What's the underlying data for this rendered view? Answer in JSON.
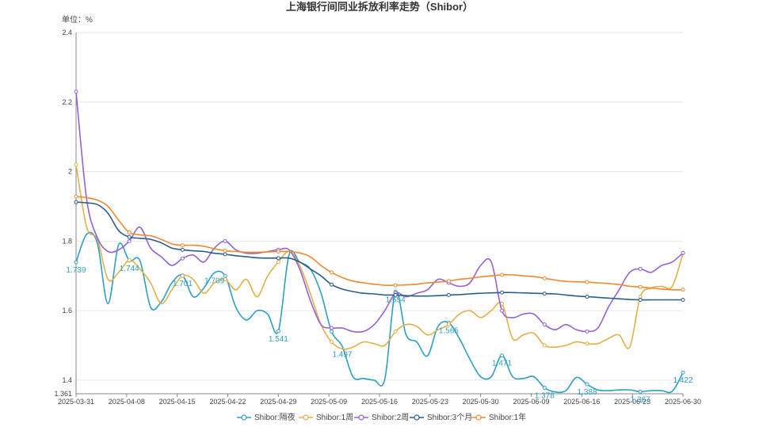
{
  "chart_data": {
    "type": "line",
    "title": "上海银行间同业拆放利率走势（Shibor）",
    "unit_label": "单位：%",
    "ylim": [
      1.361,
      2.4
    ],
    "yticks": [
      "1.361",
      "1.4",
      "1.6",
      "1.8",
      "2",
      "2.2",
      "2.4"
    ],
    "x_tick_labels": [
      "2025-03-31",
      "2025-04-08",
      "2025-04-15",
      "2025-04-22",
      "2025-04-29",
      "2025-05-09",
      "2025-05-16",
      "2025-05-23",
      "2025-05-30",
      "2025-06-09",
      "2025-06-16",
      "2025-06-23",
      "2025-06-30"
    ],
    "grid": "horizontal",
    "legend_position": "bottom",
    "colors": {
      "overnight": "#2e9fc4",
      "w1": "#e2b04a",
      "w2": "#9462d6",
      "m3": "#2a5d8a",
      "y1": "#ec8a33"
    },
    "series": [
      {
        "name": "Shibor:隔夜",
        "key": "overnight",
        "values": [
          1.739,
          1.82,
          1.794,
          1.62,
          1.79,
          1.744,
          1.744,
          1.61,
          1.625,
          1.68,
          1.701,
          1.64,
          1.665,
          1.709,
          1.7,
          1.61,
          1.573,
          1.6,
          1.59,
          1.541,
          1.76,
          1.74,
          1.72,
          1.651,
          1.54,
          1.497,
          1.41,
          1.405,
          1.4,
          1.403,
          1.654,
          1.53,
          1.51,
          1.47,
          1.555,
          1.565,
          1.52,
          1.46,
          1.41,
          1.41,
          1.471,
          1.41,
          1.405,
          1.41,
          1.378,
          1.366,
          1.37,
          1.408,
          1.388,
          1.372,
          1.37,
          1.372,
          1.372,
          1.367,
          1.37,
          1.37,
          1.368,
          1.422
        ]
      },
      {
        "name": "Shibor:1周",
        "key": "w1",
        "values": [
          2.02,
          1.84,
          1.805,
          1.69,
          1.71,
          1.745,
          1.72,
          1.68,
          1.62,
          1.66,
          1.7,
          1.69,
          1.65,
          1.68,
          1.69,
          1.66,
          1.69,
          1.64,
          1.7,
          1.74,
          1.77,
          1.73,
          1.65,
          1.56,
          1.51,
          1.49,
          1.495,
          1.51,
          1.505,
          1.5,
          1.54,
          1.56,
          1.555,
          1.53,
          1.545,
          1.56,
          1.59,
          1.6,
          1.58,
          1.6,
          1.62,
          1.52,
          1.53,
          1.535,
          1.5,
          1.495,
          1.5,
          1.51,
          1.505,
          1.505,
          1.52,
          1.53,
          1.495,
          1.64,
          1.665,
          1.67,
          1.67,
          1.765
        ]
      },
      {
        "name": "Shibor:2周",
        "key": "w2",
        "values": [
          2.23,
          1.92,
          1.81,
          1.77,
          1.775,
          1.8,
          1.84,
          1.78,
          1.755,
          1.73,
          1.75,
          1.76,
          1.74,
          1.78,
          1.8,
          1.775,
          1.765,
          1.765,
          1.77,
          1.775,
          1.775,
          1.72,
          1.63,
          1.56,
          1.55,
          1.55,
          1.54,
          1.54,
          1.56,
          1.6,
          1.65,
          1.64,
          1.65,
          1.66,
          1.69,
          1.68,
          1.67,
          1.68,
          1.73,
          1.74,
          1.6,
          1.58,
          1.59,
          1.59,
          1.56,
          1.545,
          1.56,
          1.545,
          1.54,
          1.55,
          1.61,
          1.66,
          1.71,
          1.72,
          1.71,
          1.73,
          1.74,
          1.766
        ]
      },
      {
        "name": "Shibor:3个月",
        "key": "m3",
        "values": [
          1.912,
          1.91,
          1.905,
          1.88,
          1.83,
          1.812,
          1.808,
          1.805,
          1.795,
          1.78,
          1.775,
          1.772,
          1.77,
          1.765,
          1.762,
          1.758,
          1.755,
          1.752,
          1.751,
          1.751,
          1.751,
          1.74,
          1.72,
          1.7,
          1.675,
          1.662,
          1.655,
          1.65,
          1.648,
          1.645,
          1.645,
          1.643,
          1.642,
          1.642,
          1.643,
          1.645,
          1.646,
          1.648,
          1.65,
          1.651,
          1.652,
          1.652,
          1.651,
          1.65,
          1.649,
          1.648,
          1.645,
          1.642,
          1.64,
          1.638,
          1.636,
          1.634,
          1.632,
          1.631,
          1.631,
          1.631,
          1.631,
          1.631
        ]
      },
      {
        "name": "Shibor:1年",
        "key": "y1",
        "values": [
          1.928,
          1.925,
          1.918,
          1.9,
          1.86,
          1.825,
          1.818,
          1.815,
          1.805,
          1.792,
          1.788,
          1.788,
          1.785,
          1.778,
          1.772,
          1.77,
          1.768,
          1.768,
          1.769,
          1.77,
          1.77,
          1.766,
          1.755,
          1.73,
          1.71,
          1.695,
          1.685,
          1.68,
          1.676,
          1.673,
          1.673,
          1.674,
          1.676,
          1.68,
          1.682,
          1.685,
          1.69,
          1.693,
          1.697,
          1.7,
          1.703,
          1.703,
          1.7,
          1.698,
          1.693,
          1.688,
          1.684,
          1.683,
          1.682,
          1.68,
          1.678,
          1.675,
          1.67,
          1.668,
          1.665,
          1.662,
          1.66,
          1.66
        ]
      }
    ],
    "data_labels": [
      {
        "series": "overnight",
        "index": 0,
        "text": "1.739"
      },
      {
        "series": "overnight",
        "index": 5,
        "text": "1.744"
      },
      {
        "series": "overnight",
        "index": 10,
        "text": "1.701"
      },
      {
        "series": "overnight",
        "index": 13,
        "text": "1.709"
      },
      {
        "series": "overnight",
        "index": 19,
        "text": "1.541"
      },
      {
        "series": "overnight",
        "index": 25,
        "text": "1.497"
      },
      {
        "series": "overnight",
        "index": 30,
        "text": "1.654"
      },
      {
        "series": "overnight",
        "index": 35,
        "text": "1.565"
      },
      {
        "series": "overnight",
        "index": 40,
        "text": "1.471"
      },
      {
        "series": "overnight",
        "index": 44,
        "text": "1.378"
      },
      {
        "series": "overnight",
        "index": 48,
        "text": "1.388"
      },
      {
        "series": "overnight",
        "index": 53,
        "text": "1.367"
      },
      {
        "series": "overnight",
        "index": 57,
        "text": "1.422"
      }
    ]
  }
}
